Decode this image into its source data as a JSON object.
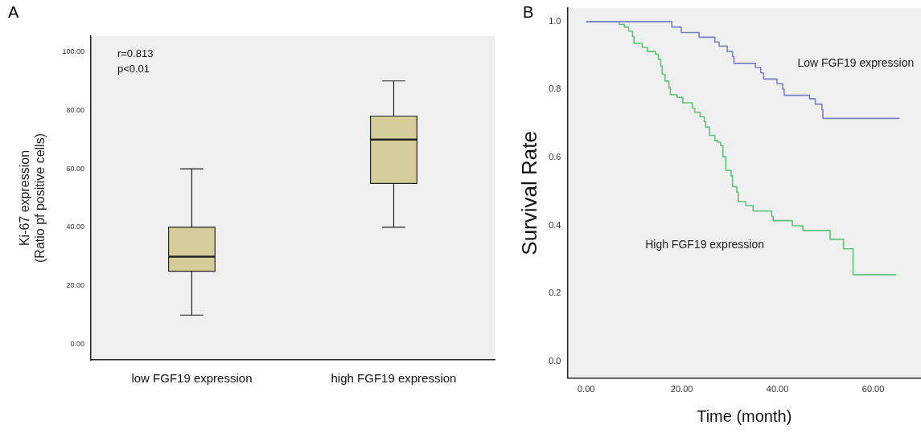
{
  "chart_data": [
    {
      "type": "box",
      "title": "A",
      "ylabel": "Ki-67 expression\n(Ratio pf positive cells)",
      "categories": [
        "low FGF19 expression",
        "high FGF19 expression"
      ],
      "series": [
        {
          "color": "#d4cc99",
          "boxes": [
            {
              "low": 10,
              "q1": 25,
              "median": 30,
              "q3": 40,
              "high": 60
            },
            {
              "low": 40,
              "q1": 55,
              "median": 70,
              "q3": 78,
              "high": 90
            }
          ]
        }
      ],
      "ylim": [
        -5.3,
        105.3
      ],
      "yticks": [
        {
          "value": 0,
          "label": "0.00"
        },
        {
          "value": 20,
          "label": "20.00"
        },
        {
          "value": 40,
          "label": "40.00"
        },
        {
          "value": 60,
          "label": "60.00"
        },
        {
          "value": 80,
          "label": "80.00"
        },
        {
          "value": 100,
          "label": "100.00"
        }
      ],
      "grid": false,
      "legend": false,
      "annotations": [
        "r=0.813",
        "p<0.01"
      ]
    },
    {
      "type": "step",
      "title": "B",
      "xlabel": "Time (month)",
      "ylabel": "Survival Rate",
      "xlim": [
        -3.9,
        70
      ],
      "xticks": [
        {
          "value": 0,
          "label": "0.00"
        },
        {
          "value": 20,
          "label": "20.00"
        },
        {
          "value": 40,
          "label": "40.00"
        },
        {
          "value": 60,
          "label": "60.00"
        }
      ],
      "ylim": [
        -0.05,
        1.04
      ],
      "yticks": [
        {
          "value": 0,
          "label": "0.0"
        },
        {
          "value": 0.2,
          "label": "0.2"
        },
        {
          "value": 0.4,
          "label": "0.4"
        },
        {
          "value": 0.6,
          "label": "0.6"
        },
        {
          "value": 0.8,
          "label": "0.8"
        },
        {
          "value": 1,
          "label": "1.0"
        }
      ],
      "grid": false,
      "legend": false,
      "marker": "none",
      "line_style": "solid",
      "series": [
        {
          "name": "Low FGF19 expression",
          "color": "#7b7fc4",
          "x": [
            0,
            17.9,
            19.9,
            23.6,
            26.9,
            27.8,
            29.5,
            30.6,
            30.9,
            35.4,
            36.5,
            37.1,
            39.9,
            41.1,
            41.4,
            46.7,
            47.9,
            49.3,
            49.5,
            65.5
          ],
          "values": [
            1,
            0.984,
            0.968,
            0.954,
            0.94,
            0.928,
            0.912,
            0.897,
            0.877,
            0.865,
            0.849,
            0.831,
            0.817,
            0.801,
            0.783,
            0.773,
            0.757,
            0.741,
            0.715,
            0.715
          ]
        },
        {
          "name": "High FGF19 expression",
          "color": "#5dc47a",
          "x": [
            0,
            6.9,
            8,
            8.9,
            9.7,
            10,
            11.7,
            12.8,
            14.5,
            15.1,
            15.6,
            15.9,
            16.5,
            17.3,
            17.6,
            19,
            20.2,
            22.2,
            22.7,
            23.8,
            24.7,
            25,
            25.8,
            26.9,
            27.5,
            28.1,
            28.6,
            29.2,
            30.3,
            30.6,
            31.5,
            31.8,
            33.4,
            34.9,
            38.8,
            39.1,
            43.1,
            45.3,
            51,
            53.8,
            55.8,
            64.8
          ],
          "values": [
            1,
            0.992,
            0.984,
            0.972,
            0.956,
            0.936,
            0.924,
            0.912,
            0.904,
            0.889,
            0.869,
            0.845,
            0.825,
            0.805,
            0.785,
            0.777,
            0.761,
            0.745,
            0.733,
            0.72,
            0.705,
            0.689,
            0.665,
            0.65,
            0.645,
            0.635,
            0.602,
            0.562,
            0.546,
            0.514,
            0.498,
            0.47,
            0.458,
            0.442,
            0.426,
            0.414,
            0.399,
            0.385,
            0.359,
            0.331,
            0.255,
            0.255
          ]
        }
      ]
    }
  ]
}
